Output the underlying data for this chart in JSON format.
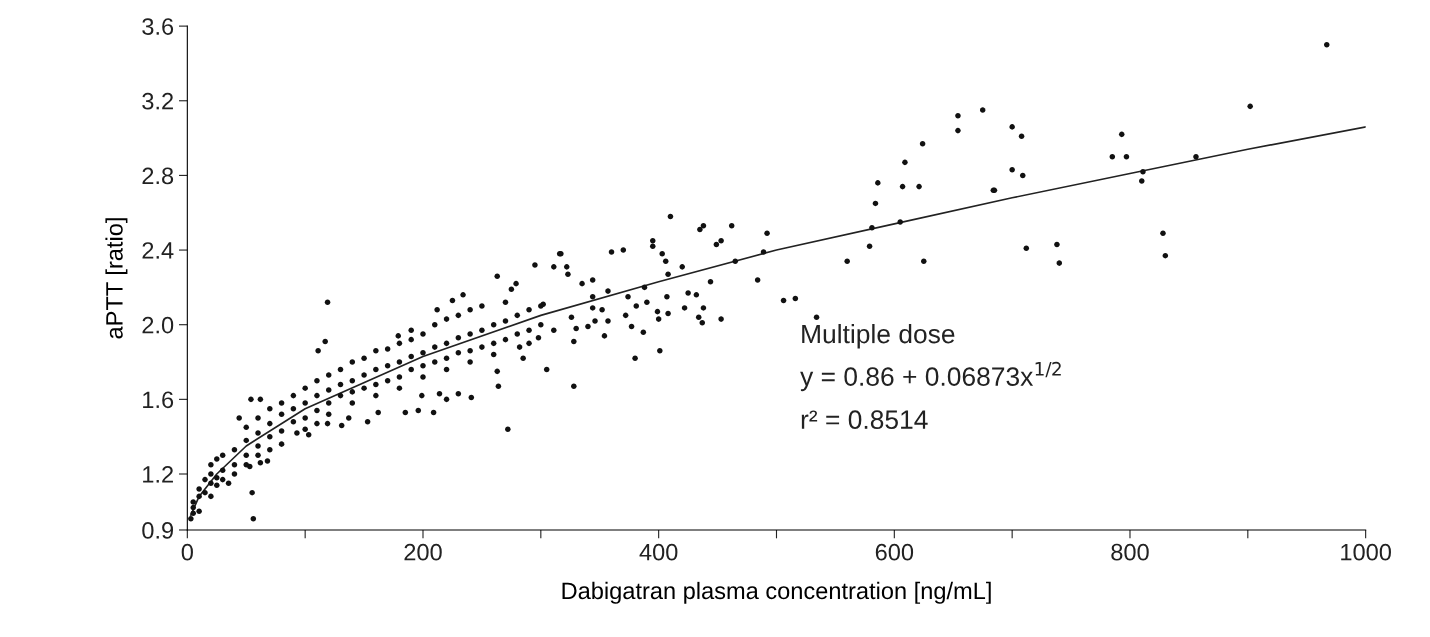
{
  "chart_data": {
    "type": "scatter",
    "xlabel": "Dabigatran plasma concentration [ng/mL]",
    "ylabel": "aPTT [ratio]",
    "xlim": [
      0,
      1000
    ],
    "ylim": [
      0.9,
      3.6
    ],
    "xticks": [
      0,
      {
        "value": 100,
        "label": null
      },
      200,
      {
        "value": 300,
        "label": null
      },
      400,
      {
        "value": 500,
        "label": null
      },
      600,
      {
        "value": 700,
        "label": null
      },
      800,
      {
        "value": 900,
        "label": null
      },
      1000
    ],
    "yticks": [
      0.9,
      1.2,
      1.6,
      {
        "value": 2,
        "label": "2.0"
      },
      2.4,
      2.8,
      3.2,
      3.6
    ],
    "grid": false,
    "legend": false,
    "marker": "circle",
    "annotations": [
      "Multiple dose",
      "y = 0.86 + 0.06873x$^{1/2}$",
      "r² = 0.8514"
    ],
    "series": [
      {
        "color": "#111111",
        "x": [
          967,
          902,
          793,
          785,
          797,
          856,
          811,
          810,
          828,
          830,
          740,
          738,
          712,
          685,
          700,
          709,
          700,
          708,
          675,
          654,
          654,
          624,
          609,
          607,
          621,
          586,
          584,
          581,
          605,
          579,
          625,
          560,
          684,
          492,
          489,
          465,
          462,
          453,
          449,
          438,
          435,
          410,
          420,
          395,
          395,
          403,
          406,
          408,
          388,
          360,
          370,
          484,
          506,
          516,
          534,
          444,
          425,
          432,
          438,
          434,
          437,
          453,
          422,
          407,
          408,
          399,
          400,
          401,
          380,
          387,
          377,
          381,
          390,
          372,
          374,
          357,
          344,
          352,
          344,
          346,
          354,
          357,
          326,
          330,
          328,
          340,
          335,
          344,
          323,
          317,
          311,
          322,
          295,
          302,
          311,
          298,
          305,
          328,
          285,
          282,
          279,
          275,
          119,
          56,
          55,
          272,
          316,
          263,
          234,
          225,
          212,
          190,
          179,
          117,
          111,
          263,
          264,
          241,
          230,
          220,
          209,
          196,
          185,
          199,
          214,
          153,
          162,
          137,
          131,
          119,
          103,
          93,
          68,
          62,
          53,
          35,
          25,
          20,
          5,
          3,
          44,
          54,
          62,
          5,
          5,
          10,
          10,
          10,
          15,
          15,
          20,
          20,
          20,
          25,
          25,
          30,
          30,
          30,
          40,
          40,
          40,
          50,
          50,
          50,
          50,
          60,
          60,
          60,
          60,
          70,
          70,
          70,
          70,
          80,
          80,
          80,
          80,
          90,
          90,
          90,
          100,
          100,
          100,
          100,
          110,
          110,
          110,
          110,
          120,
          120,
          120,
          120,
          130,
          130,
          130,
          140,
          140,
          140,
          140,
          150,
          150,
          150,
          160,
          160,
          160,
          160,
          170,
          170,
          170,
          180,
          180,
          180,
          180,
          190,
          190,
          190,
          200,
          200,
          200,
          200,
          210,
          210,
          210,
          220,
          220,
          220,
          220,
          230,
          230,
          230,
          240,
          240,
          240,
          240,
          250,
          250,
          250,
          260,
          260,
          260,
          270,
          270,
          270,
          280,
          280,
          290,
          290,
          290,
          300,
          300
        ],
        "values": [
          3.5,
          3.17,
          3.02,
          2.9,
          2.9,
          2.9,
          2.82,
          2.77,
          2.49,
          2.37,
          2.33,
          2.43,
          2.41,
          2.72,
          2.83,
          2.8,
          3.06,
          3.01,
          3.15,
          3.12,
          3.04,
          2.97,
          2.87,
          2.74,
          2.74,
          2.76,
          2.65,
          2.52,
          2.55,
          2.42,
          2.34,
          2.34,
          2.72,
          2.49,
          2.39,
          2.34,
          2.53,
          2.45,
          2.43,
          2.53,
          2.51,
          2.58,
          2.31,
          2.45,
          2.42,
          2.38,
          2.34,
          2.27,
          2.2,
          2.39,
          2.4,
          2.24,
          2.13,
          2.14,
          2.04,
          2.23,
          2.17,
          2.16,
          2.09,
          2.04,
          2.01,
          2.03,
          2.09,
          2.15,
          2.06,
          2.07,
          2.03,
          1.86,
          1.82,
          1.96,
          1.99,
          2.1,
          2.12,
          2.05,
          2.15,
          2.18,
          2.15,
          2.08,
          2.09,
          2.02,
          1.94,
          2.02,
          2.04,
          1.98,
          1.91,
          1.99,
          2.22,
          2.24,
          2.27,
          2.38,
          2.31,
          2.31,
          2.32,
          2.11,
          1.97,
          1.93,
          1.76,
          1.67,
          1.82,
          1.88,
          2.22,
          2.19,
          2.12,
          0.96,
          1.1,
          1.44,
          2.38,
          2.26,
          2.16,
          2.13,
          2.08,
          1.97,
          1.94,
          1.91,
          1.86,
          1.75,
          1.67,
          1.61,
          1.63,
          1.6,
          1.53,
          1.54,
          1.53,
          1.62,
          1.63,
          1.48,
          1.53,
          1.5,
          1.46,
          1.47,
          1.41,
          1.42,
          1.27,
          1.26,
          1.24,
          1.15,
          1.14,
          1.08,
          0.99,
          0.96,
          1.5,
          1.6,
          1.6,
          1.02,
          1.05,
          1.08,
          1.0,
          1.12,
          1.1,
          1.17,
          1.15,
          1.2,
          1.25,
          1.18,
          1.28,
          1.22,
          1.3,
          1.17,
          1.25,
          1.33,
          1.2,
          1.3,
          1.38,
          1.45,
          1.25,
          1.35,
          1.42,
          1.5,
          1.3,
          1.4,
          1.47,
          1.55,
          1.33,
          1.43,
          1.52,
          1.58,
          1.36,
          1.48,
          1.55,
          1.62,
          1.5,
          1.58,
          1.66,
          1.44,
          1.54,
          1.62,
          1.7,
          1.47,
          1.58,
          1.65,
          1.73,
          1.52,
          1.62,
          1.68,
          1.76,
          1.64,
          1.7,
          1.8,
          1.58,
          1.66,
          1.73,
          1.82,
          1.68,
          1.76,
          1.86,
          1.62,
          1.7,
          1.78,
          1.87,
          1.72,
          1.8,
          1.9,
          1.66,
          1.76,
          1.83,
          1.92,
          1.78,
          1.85,
          1.95,
          1.72,
          1.8,
          1.88,
          2.0,
          1.82,
          1.9,
          2.03,
          1.76,
          1.85,
          1.93,
          2.05,
          1.86,
          1.95,
          2.08,
          1.8,
          1.88,
          1.97,
          2.1,
          1.9,
          2.0,
          1.84,
          1.92,
          2.02,
          2.12,
          1.95,
          2.05,
          1.97,
          2.08,
          1.9,
          2.0,
          2.1
        ]
      },
      {
        "type": "line",
        "color": "#222222",
        "marker": "none",
        "line_style": "solid",
        "x": [
          3,
          10,
          25,
          50,
          100,
          200,
          300,
          400,
          500,
          600,
          700,
          800,
          900,
          1000
        ],
        "values": [
          0.98,
          1.08,
          1.2,
          1.35,
          1.55,
          1.83,
          2.05,
          2.23,
          2.4,
          2.54,
          2.68,
          2.81,
          2.94,
          3.06
        ]
      }
    ]
  }
}
